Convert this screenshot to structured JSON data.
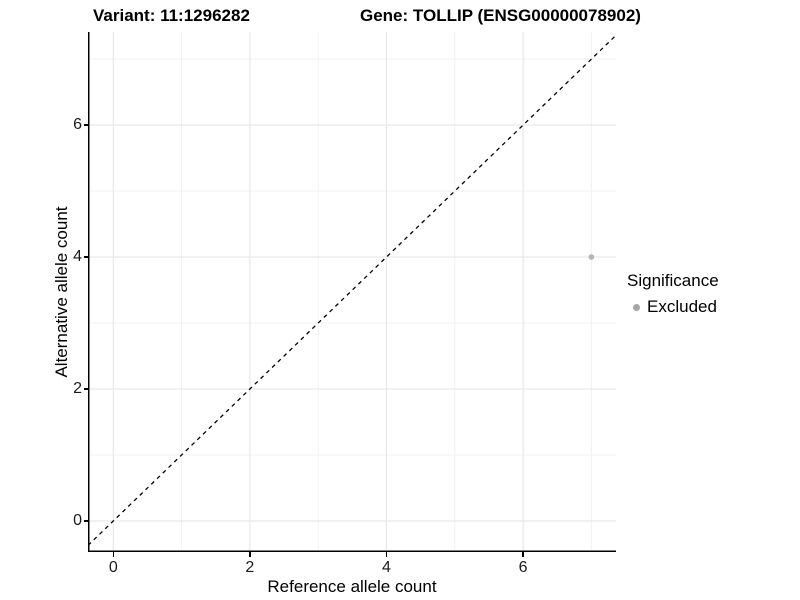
{
  "chart_data": {
    "type": "scatter",
    "title_left": "Variant: 11:1296282",
    "title_right": "Gene: TOLLIP (ENSG00000078902)",
    "xlabel": "Reference allele count",
    "ylabel": "Alternative allele count",
    "x_ticks": [
      0,
      2,
      4,
      6
    ],
    "y_ticks": [
      0,
      2,
      4,
      6
    ],
    "xlim": [
      -0.37,
      7.36
    ],
    "ylim": [
      -0.47,
      7.41
    ],
    "grid": true,
    "minor_grid": true,
    "series": [
      {
        "name": "Excluded",
        "color": "#b3b3b3",
        "point_radius": 2.8,
        "points": [
          {
            "x": 7,
            "y": 4
          }
        ]
      }
    ],
    "reference_line": {
      "slope": 1,
      "intercept": 0,
      "style": "dashed",
      "color": "#000000"
    },
    "legend": {
      "title": "Significance",
      "position": "right",
      "entries": [
        {
          "label": "Excluded",
          "color": "#a6a6a6"
        }
      ]
    },
    "colors": {
      "grid_major": "#e6e6e6",
      "grid_minor": "#f2f2f2",
      "axis_line": "#000000",
      "background": "#ffffff"
    }
  }
}
